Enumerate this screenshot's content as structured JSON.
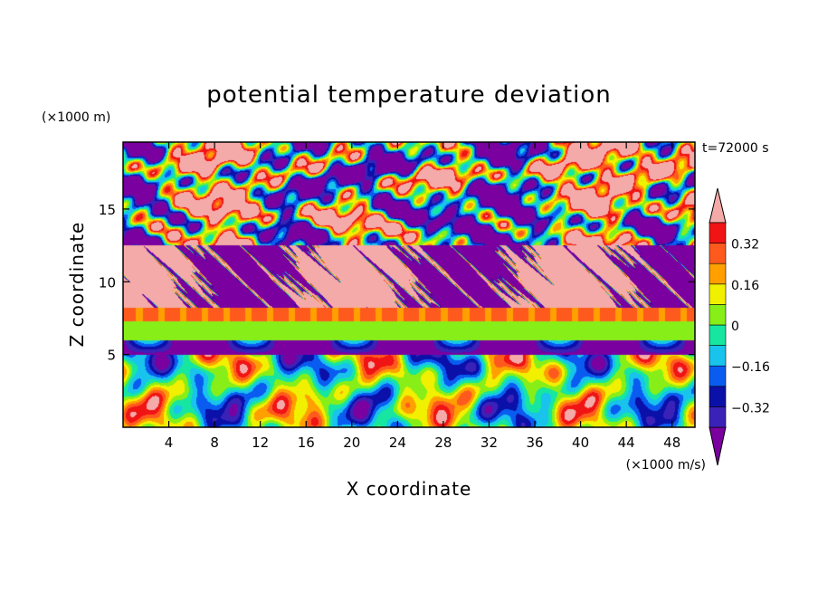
{
  "chart_data": {
    "type": "heatmap",
    "title": "potential temperature deviation",
    "time_label": "t=72000 s",
    "xlabel": "X coordinate",
    "ylabel": "Z coordinate",
    "x_unit": "(×1000 m/s)",
    "y_unit": "(×1000 m)",
    "xlim": [
      0,
      50
    ],
    "ylim": [
      0,
      19.6
    ],
    "x_ticks": [
      4,
      8,
      12,
      16,
      20,
      24,
      28,
      32,
      36,
      40,
      44,
      48
    ],
    "y_ticks": [
      5,
      10,
      15
    ],
    "grid": false,
    "colorbar": {
      "placement": "right",
      "levels": [
        -0.4,
        -0.32,
        -0.24,
        -0.16,
        -0.08,
        0,
        0.08,
        0.16,
        0.24,
        0.32,
        0.4
      ],
      "labels": [
        "0.32",
        "0.16",
        "0",
        "−0.16",
        "−0.32"
      ],
      "label_values": [
        0.32,
        0.16,
        0,
        -0.16,
        -0.32
      ],
      "colors": [
        "#7a00a0",
        "#3a22b8",
        "#0b10a8",
        "#0a5cf0",
        "#18c4ec",
        "#16e6a0",
        "#88ee18",
        "#f0f000",
        "#ffa000",
        "#ff5a1e",
        "#f01414",
        "#f4aaa8"
      ],
      "extend": "both"
    },
    "bands": [
      {
        "z_range": [
          0,
          5
        ],
        "pattern": "convective eddies",
        "range": [
          -0.3,
          0.35
        ]
      },
      {
        "z_range": [
          5,
          6
        ],
        "pattern": "strong negative layer",
        "value": -0.4
      },
      {
        "z_range": [
          6,
          7.3
        ],
        "pattern": "near-zero positive layer",
        "value": 0.05
      },
      {
        "z_range": [
          7.3,
          8.2
        ],
        "pattern": "warm layer",
        "value": 0.25
      },
      {
        "z_range": [
          8.2,
          12.5
        ],
        "pattern": "mixed extreme patches",
        "range": [
          -0.4,
          0.4
        ]
      },
      {
        "z_range": [
          12.5,
          19.6
        ],
        "pattern": "turbulent extreme patches",
        "range": [
          -0.4,
          0.4
        ]
      }
    ]
  }
}
